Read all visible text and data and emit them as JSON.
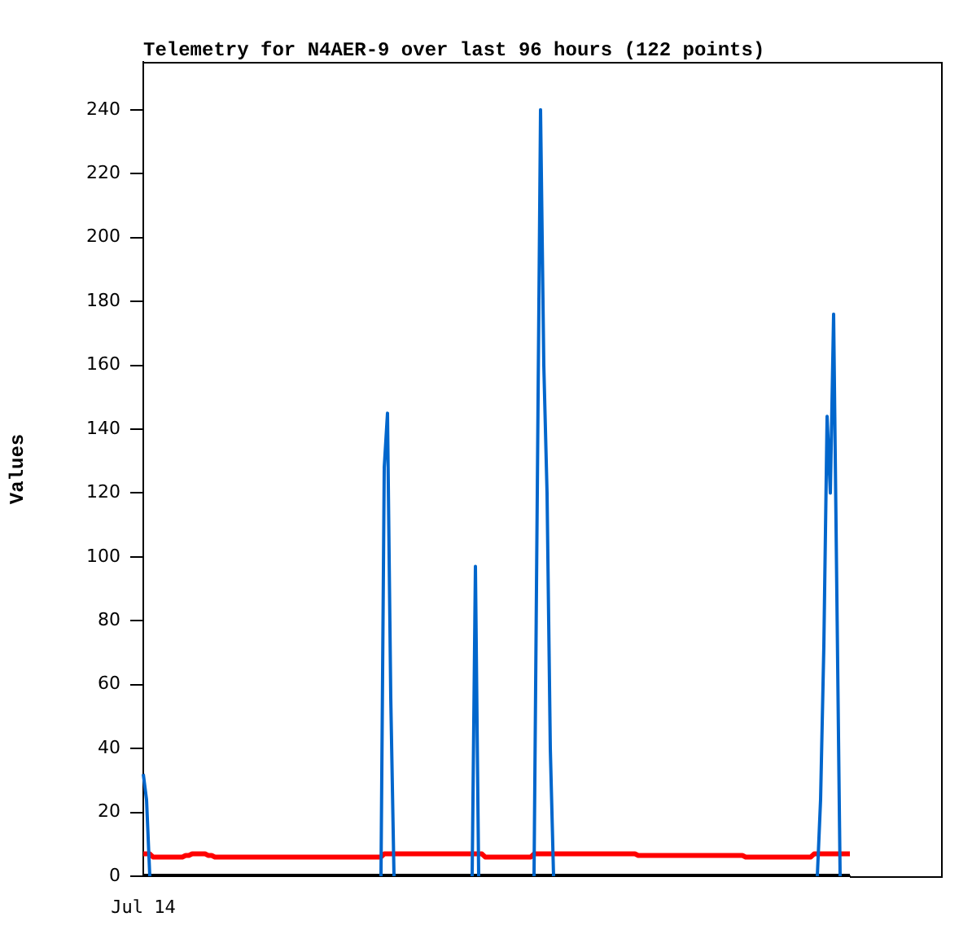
{
  "chart_data": {
    "type": "line",
    "title": "Telemetry for N4AER-9 over last 96 hours (122 points)",
    "ylabel": "Values",
    "annotations": [
      "Jul 14"
    ],
    "categories": [
      null,
      null,
      null,
      null,
      null,
      null,
      null,
      null,
      null,
      null,
      null,
      null,
      null,
      null,
      null,
      null,
      null,
      null,
      null,
      null,
      null,
      null,
      null,
      null,
      null,
      null,
      null,
      null,
      null,
      null,
      null,
      null,
      null,
      null,
      null,
      null,
      null,
      null,
      null,
      null,
      null,
      null,
      null,
      null,
      null,
      null,
      null,
      null,
      null,
      null,
      null,
      null,
      null,
      null,
      null,
      null,
      null,
      null,
      null,
      null,
      null,
      null,
      null,
      null,
      null,
      null,
      null,
      null,
      null,
      null,
      null,
      null,
      null,
      null,
      null,
      null,
      null,
      null,
      null,
      null,
      null,
      null,
      null,
      null,
      null,
      null,
      null,
      null,
      null,
      null,
      null,
      null,
      null,
      null,
      null,
      null,
      null,
      null,
      null,
      null,
      null,
      null,
      null,
      null,
      null,
      null,
      null,
      null,
      null,
      null,
      null,
      null,
      null,
      null,
      null,
      null,
      null,
      null,
      null,
      null,
      null,
      null,
      null,
      null,
      null,
      null,
      null,
      null,
      null,
      null,
      null,
      null,
      null,
      null,
      null,
      null,
      null,
      null,
      null,
      null,
      null,
      null,
      null,
      null,
      null,
      null,
      null,
      null,
      null,
      null,
      null,
      null,
      null,
      null,
      null,
      null,
      null,
      null,
      null,
      null,
      null,
      null,
      null,
      null,
      null,
      null,
      null,
      null,
      null,
      null,
      null,
      null,
      null,
      null,
      null,
      null,
      null,
      null,
      null,
      null,
      null,
      null,
      null,
      null,
      null,
      null,
      null,
      null,
      null,
      null,
      null,
      null,
      null,
      null,
      null,
      null,
      null,
      null,
      null,
      null,
      null,
      null,
      null,
      null,
      null,
      null,
      null,
      null,
      null,
      null,
      null,
      null,
      null,
      null,
      null,
      null,
      null,
      null
    ],
    "ylim": [
      0,
      255
    ],
    "yticks": [
      0,
      20,
      40,
      60,
      80,
      100,
      120,
      140,
      160,
      180,
      200,
      220,
      240
    ],
    "grid": false,
    "legend": false,
    "series": [
      {
        "color": "#0066cc",
        "values": [
          32,
          24,
          0,
          null,
          null,
          null,
          null,
          null,
          null,
          null,
          null,
          null,
          null,
          null,
          null,
          null,
          null,
          null,
          null,
          null,
          null,
          null,
          null,
          null,
          null,
          null,
          null,
          null,
          null,
          null,
          null,
          null,
          null,
          null,
          null,
          null,
          null,
          null,
          null,
          null,
          null,
          null,
          null,
          null,
          null,
          null,
          null,
          null,
          null,
          null,
          null,
          null,
          null,
          null,
          null,
          null,
          null,
          null,
          null,
          null,
          null,
          null,
          null,
          null,
          null,
          null,
          null,
          null,
          null,
          null,
          null,
          null,
          null,
          0,
          128,
          145,
          56,
          0,
          null,
          null,
          null,
          null,
          null,
          null,
          null,
          null,
          null,
          null,
          null,
          null,
          null,
          null,
          null,
          null,
          null,
          null,
          null,
          null,
          null,
          null,
          null,
          0,
          97,
          0,
          null,
          null,
          null,
          null,
          null,
          null,
          null,
          null,
          null,
          null,
          null,
          null,
          null,
          null,
          null,
          null,
          0,
          120,
          240,
          160,
          120,
          40,
          0,
          null,
          null,
          null,
          null,
          null,
          null,
          null,
          null,
          null,
          null,
          null,
          null,
          null,
          null,
          null,
          null,
          null,
          null,
          null,
          null,
          null,
          null,
          null,
          null,
          null,
          null,
          null,
          null,
          null,
          null,
          null,
          null,
          null,
          null,
          null,
          null,
          null,
          null,
          null,
          null,
          null,
          null,
          null,
          null,
          null,
          null,
          null,
          null,
          null,
          null,
          null,
          null,
          null,
          null,
          null,
          null,
          null,
          null,
          null,
          null,
          null,
          null,
          null,
          null,
          null,
          null,
          null,
          null,
          null,
          null,
          null,
          null,
          null,
          null,
          null,
          null,
          null,
          null,
          null,
          null,
          0,
          24,
          72,
          144,
          120,
          176,
          88,
          0,
          null,
          null,
          null
        ]
      },
      {
        "color": "#ff0000",
        "values": [
          7,
          7,
          7,
          6,
          6,
          6,
          6,
          6,
          6,
          6,
          6,
          6,
          6,
          6.5,
          6.5,
          7,
          7,
          7,
          7,
          7,
          6.5,
          6.5,
          6,
          6,
          6,
          6,
          6,
          6,
          6,
          6,
          6,
          6,
          6,
          6,
          6,
          6,
          6,
          6,
          6,
          6,
          6,
          6,
          6,
          6,
          6,
          6,
          6,
          6,
          6,
          6,
          6,
          6,
          6,
          6,
          6,
          6,
          6,
          6,
          6,
          6,
          6,
          6,
          6,
          6,
          6,
          6,
          6,
          6,
          6,
          6,
          6,
          6,
          6,
          6,
          7,
          7,
          7,
          7,
          7,
          7,
          7,
          7,
          7,
          7,
          7,
          7,
          7,
          7,
          7,
          7,
          7,
          7,
          7,
          7,
          7,
          7,
          7,
          7,
          7,
          7,
          7,
          7,
          7,
          7,
          7,
          6,
          6,
          6,
          6,
          6,
          6,
          6,
          6,
          6,
          6,
          6,
          6,
          6,
          6,
          6,
          7,
          7,
          7,
          7,
          7,
          7,
          7,
          7,
          7,
          7,
          7,
          7,
          7,
          7,
          7,
          7,
          7,
          7,
          7,
          7,
          7,
          7,
          7,
          7,
          7,
          7,
          7,
          7,
          7,
          7,
          7,
          7,
          6.5,
          6.5,
          6.5,
          6.5,
          6.5,
          6.5,
          6.5,
          6.5,
          6.5,
          6.5,
          6.5,
          6.5,
          6.5,
          6.5,
          6.5,
          6.5,
          6.5,
          6.5,
          6.5,
          6.5,
          6.5,
          6.5,
          6.5,
          6.5,
          6.5,
          6.5,
          6.5,
          6.5,
          6.5,
          6.5,
          6.5,
          6.5,
          6.5,
          6,
          6,
          6,
          6,
          6,
          6,
          6,
          6,
          6,
          6,
          6,
          6,
          6,
          6,
          6,
          6,
          6,
          6,
          6,
          6,
          6,
          7,
          7,
          7,
          7,
          7,
          7,
          7,
          7,
          7,
          7,
          7,
          7
        ]
      },
      {
        "color": "#000000",
        "values": [
          0,
          0,
          0,
          0,
          0,
          0,
          0,
          0,
          0,
          0,
          0,
          0,
          0,
          0,
          0,
          0,
          0,
          0,
          0,
          0,
          0,
          0,
          0,
          0,
          0,
          0,
          0,
          0,
          0,
          0,
          0,
          0,
          0,
          0,
          0,
          0,
          0,
          0,
          0,
          0,
          0,
          0,
          0,
          0,
          0,
          0,
          0,
          0,
          0,
          0,
          0,
          0,
          0,
          0,
          0,
          0,
          0,
          0,
          0,
          0,
          0,
          0,
          0,
          0,
          0,
          0,
          0,
          0,
          0,
          0,
          0,
          0,
          0,
          0,
          0,
          0,
          0,
          0,
          0,
          0,
          0,
          0,
          0,
          0,
          0,
          0,
          0,
          0,
          0,
          0,
          0,
          0,
          0,
          0,
          0,
          0,
          0,
          0,
          0,
          0,
          0,
          0,
          0,
          0,
          0,
          0,
          0,
          0,
          0,
          0,
          0,
          0,
          0,
          0,
          0,
          0,
          0,
          0,
          0,
          0,
          0,
          0,
          0,
          0,
          0,
          0,
          0,
          0,
          0,
          0,
          0,
          0,
          0,
          0,
          0,
          0,
          0,
          0,
          0,
          0,
          0,
          0,
          0,
          0,
          0,
          0,
          0,
          0,
          0,
          0,
          0,
          0,
          0,
          0,
          0,
          0,
          0,
          0,
          0,
          0,
          0,
          0,
          0,
          0,
          0,
          0,
          0,
          0,
          0,
          0,
          0,
          0,
          0,
          0,
          0,
          0,
          0,
          0,
          0,
          0,
          0,
          0,
          0,
          0,
          0,
          0,
          0,
          0,
          0,
          0,
          0,
          0,
          0,
          0,
          0,
          0,
          0,
          0,
          0,
          0,
          0,
          0,
          0,
          0,
          0,
          0,
          0,
          0,
          0,
          0,
          0,
          0,
          0,
          0,
          0,
          0,
          0,
          0
        ]
      }
    ]
  }
}
